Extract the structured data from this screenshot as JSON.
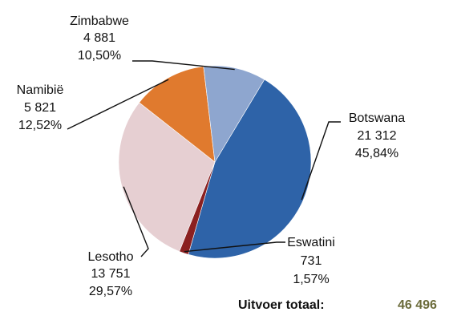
{
  "chart_data": {
    "type": "pie",
    "title": "",
    "slices": [
      {
        "name": "Botswana",
        "value_label": "21 312",
        "value": 21312,
        "percent_label": "45,84%",
        "percent": 45.84,
        "color": "#2e63a8"
      },
      {
        "name": "Eswatini",
        "value_label": "731",
        "value": 731,
        "percent_label": "1,57%",
        "percent": 1.57,
        "color": "#8b2020"
      },
      {
        "name": "Lesotho",
        "value_label": "13 751",
        "value": 13751,
        "percent_label": "29,57%",
        "percent": 29.57,
        "color": "#e6cfd2"
      },
      {
        "name": "Namibië",
        "value_label": "5 821",
        "value": 5821,
        "percent_label": "12,52%",
        "percent": 12.52,
        "color": "#e07a2e"
      },
      {
        "name": "Zimbabwe",
        "value_label": "4 881",
        "value": 4881,
        "percent_label": "10,50%",
        "percent": 10.5,
        "color": "#8ea6cf"
      }
    ],
    "start_angle_deg": 31,
    "direction": "clockwise"
  },
  "total": {
    "label": "Uitvoer totaal:",
    "value": "46 496"
  }
}
